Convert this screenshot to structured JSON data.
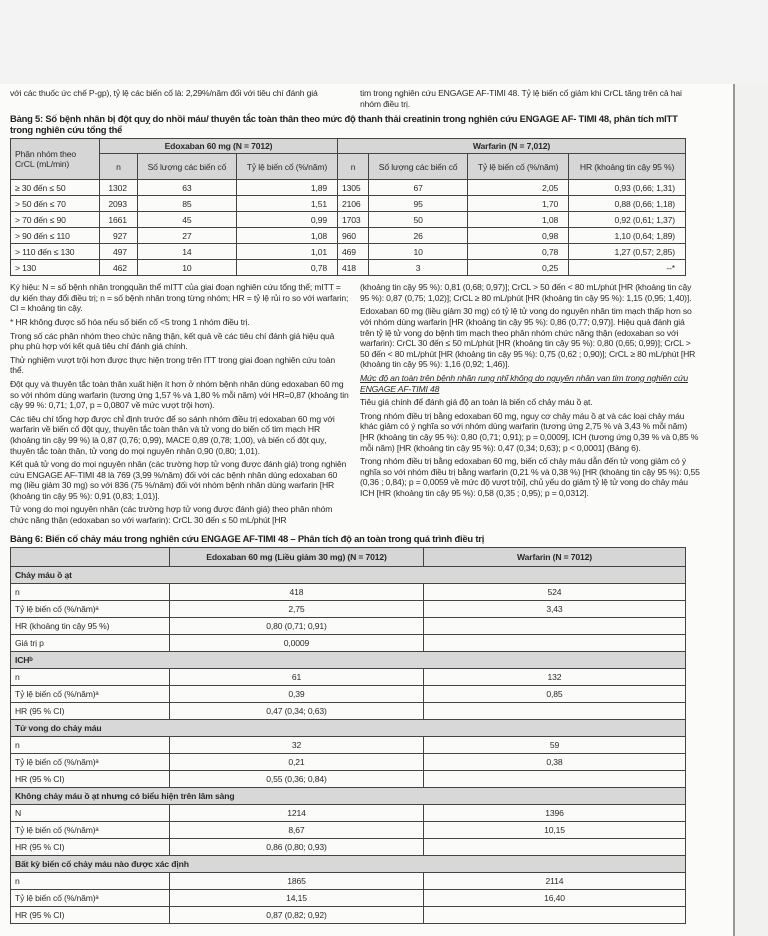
{
  "top_text": {
    "left": "với các thuốc ức chế P-gp), tỷ lệ các biến cố là: 2,29%/năm đối với tiêu chí đánh giá",
    "right": "tim trong nghiên cứu ENGAGE AF-TIMI 48. Tỷ lệ biến cố giảm khi CrCL tăng trên cả hai nhóm điều trị."
  },
  "table5": {
    "title": "Bảng 5: Số bệnh nhân bị đột quỵ do nhồi máu/ thuyên tắc toàn thân theo mức độ thanh thải creatinin trong nghiên cứu ENGAGE AF- TIMI 48, phân tích mITT trong nghiên cứu tổng thể",
    "group_header": "Phân nhóm theo CrCL (mL/min)",
    "edoxaban_header": "Edoxaban 60 mg (N = 7012)",
    "warfarin_header": "Warfarin (N = 7,012)",
    "sub_headers": [
      "n",
      "Số lượng các biến cố",
      "Tỷ lệ biến cố (%/năm)",
      "n",
      "Số lượng các biến cố",
      "Tỷ lệ biến cố (%/năm)",
      "HR (khoảng tin cậy 95 %)"
    ],
    "rows": [
      [
        "≥ 30 đến ≤ 50",
        "1302",
        "63",
        "1,89",
        "1305",
        "67",
        "2,05",
        "0,93 (0,66; 1,31)"
      ],
      [
        "> 50 đến ≤ 70",
        "2093",
        "85",
        "1,51",
        "2106",
        "95",
        "1,70",
        "0,88 (0,66; 1,18)"
      ],
      [
        "> 70 đến ≤ 90",
        "1661",
        "45",
        "0,99",
        "1703",
        "50",
        "1,08",
        "0,92 (0,61; 1,37)"
      ],
      [
        "> 90 đến ≤ 110",
        "927",
        "27",
        "1,08",
        "960",
        "26",
        "0,98",
        "1,10 (0,64; 1,89)"
      ],
      [
        "> 110 đến ≤ 130",
        "497",
        "14",
        "1,01",
        "469",
        "10",
        "0,78",
        "1,27 (0,57; 2,85)"
      ],
      [
        "> 130",
        "462",
        "10",
        "0,78",
        "418",
        "3",
        "0,25",
        "--*"
      ]
    ]
  },
  "left_paragraphs": [
    "Ký hiệu: N = số bệnh nhân trongquần thể mITT của giai đoạn nghiên cứu tổng thể; mITT = dự kiến thay đổi điều trị; n = số bệnh nhân trong từng nhóm; HR = tỷ lệ rủi ro so với warfarin; CI = khoảng tin cậy.",
    "* HR không được số hóa nếu số biến cố <5 trong 1 nhóm điều trị.",
    "Trong số các phân nhóm theo chức năng thận, kết quả về các tiêu chí đánh giá hiệu quả phụ phù hợp với kết quả tiêu chí đánh giá chính.",
    "Thử nghiệm vượt trội hơn được thực hiện trong trên ITT trong giai đoạn nghiên cứu toàn thể.",
    "Đột quỵ và thuyên tắc toàn thân xuất hiện ít hơn ở nhóm bệnh nhân dùng edoxaban 60 mg so với nhóm dùng warfarin (tương ứng 1,57 % và 1,80 % mỗi năm) với HR=0,87 (khoảng tin cậy 99 %: 0,71; 1,07, p = 0,0807 về mức vượt trội hơn).",
    "Các tiêu chí tổng hợp được chỉ định trước để so sánh nhóm điều trị edoxaban 60 mg với warfarin về biến cố đột quỵ, thuyên tắc toàn thân và tử vong do biến cố tim mạch HR (khoảng tin cậy 99 %) là 0,87 (0,76; 0,99), MACE 0,89 (0,78; 1,00), và biến cố đột quỵ, thuyên tắc toàn thân, tử vong do mọi nguyên nhân 0,90 (0,80; 1,01).",
    "Kết quả tử vong do mọi nguyên nhân (các trường hợp tử vong được đánh giá) trong nghiên cứu ENGAGE AF-TIMI 48 là 769 (3,99 %/năm) đối với các bệnh nhân dùng edoxaban 60 mg (liều giảm 30 mg) so với 836 (75 %/năm) đối với nhóm bệnh nhân dùng warfarin [HR (khoảng tin cậy 95 %): 0,91 (0,83; 1,01)].",
    "Tử vong do mọi nguyên nhân (các trường hợp tử vong được đánh giá) theo phân nhóm chức năng thận (edoxaban so với warfarin): CrCL 30 đến ≤ 50 mL/phút [HR"
  ],
  "right_paragraphs": [
    "(khoảng tin cậy 95 %): 0,81 (0,68; 0,97)]; CrCL > 50 đến < 80 mL/phút [HR (khoảng tin cậy 95 %): 0,87 (0,75; 1,02)]; CrCL ≥ 80 mL/phút [HR (khoảng tin cậy 95 %): 1,15 (0,95; 1,40)].",
    "Edoxaban 60 mg (liều giảm 30 mg) có tỷ lệ tử vong do nguyên nhân tim mạch thấp hơn so với nhóm dùng warfarin [HR (khoảng tin cậy 95 %): 0,86 (0,77; 0,97)]. Hiệu quả đánh giá trên tỷ lệ tử vong do bệnh tim mạch theo phân nhóm chức năng thận (edoxaban so với warfarin): CrCL 30 đến ≤ 50 mL/phút [HR (khoảng tin cậy 95 %): 0,80 (0,65; 0,99)]; CrCL > 50 đến < 80 mL/phút [HR (khoảng tin cậy 95 %): 0,75 (0,62 ; 0,90)]; CrCL ≥ 80 mL/phút [HR (khoảng tin cậy 95 %): 1,16 (0,92; 1,46)]."
  ],
  "right_heading": "Mức độ an toàn trên bệnh nhân rung nhĩ không do nguyên nhân van tim trong nghiên cứu ENGAGE AF-TIMI 48",
  "right_paragraphs_2": [
    "Tiêu giá chính để đánh giá độ an toàn là biến cố chảy máu ồ ạt.",
    "Trong nhóm điều trị bằng edoxaban 60 mg, nguy cơ chảy máu ồ ạt và các loại chảy máu khác giảm có ý nghĩa so với nhóm dùng warfarin (tương ứng 2,75 % và 3,43 % mỗi năm) [HR (khoảng tin cậy 95 %): 0,80 (0,71; 0,91); p = 0,0009], ICH (tương ứng 0,39 % và 0,85 % mỗi năm) [HR (khoảng tin cậy 95 %): 0,47 (0,34; 0,63); p < 0,0001] (Bảng 6).",
    "Trong nhóm điều trị bằng edoxaban 60 mg, biến cố chảy máu dẫn đến tử vong giảm có ý nghĩa so với nhóm điều trị bằng warfarin (0,21 % và 0,38 %) [HR (khoảng tin cậy 95 %): 0,55 (0,36 ; 0,84); p = 0,0059 về mức độ vượt trội], chủ yếu do giảm tỷ lệ tử vong do chảy máu ICH [HR (khoảng tin cậy 95 %): 0,58 (0,35 ; 0,95); p = 0,0312]."
  ],
  "table6": {
    "title": "Bảng 6: Biến cố chảy máu trong nghiên cứu ENGAGE AF-TIMI 48 – Phân tích độ an toàn trong quá trình điều trị",
    "edoxaban_header": "Edoxaban 60 mg (Liều giảm 30 mg) (N = 7012)",
    "warfarin_header": "Warfarin (N = 7012)",
    "sections": [
      {
        "title": "Chảy máu ồ ạt",
        "rows": [
          {
            "label": "n",
            "edoxaban": "418",
            "warfarin": "524"
          },
          {
            "label": "Tỷ lệ biến cố (%/năm)ᵃ",
            "edoxaban": "2,75",
            "warfarin": "3,43"
          },
          {
            "label": "HR (khoảng tin cậy 95 %)",
            "edoxaban": "0,80 (0,71; 0,91)",
            "warfarin": ""
          },
          {
            "label": "Giá trị p",
            "edoxaban": "0,0009",
            "warfarin": ""
          }
        ]
      },
      {
        "title": "ICHᵇ",
        "rows": [
          {
            "label": "n",
            "edoxaban": "61",
            "warfarin": "132"
          },
          {
            "label": "Tỷ lệ biến cố (%/năm)ᵃ",
            "edoxaban": "0,39",
            "warfarin": "0,85"
          },
          {
            "label": "HR (95 % CI)",
            "edoxaban": "0,47 (0,34; 0,63)",
            "warfarin": ""
          }
        ]
      },
      {
        "title": "Tử vong do chảy máu",
        "rows": [
          {
            "label": "n",
            "edoxaban": "32",
            "warfarin": "59"
          },
          {
            "label": "Tỷ lệ biến cố (%/năm)ᵃ",
            "edoxaban": "0,21",
            "warfarin": "0,38"
          },
          {
            "label": "HR (95 % CI)",
            "edoxaban": "0,55 (0,36; 0,84)",
            "warfarin": ""
          }
        ]
      },
      {
        "title": "Không chảy máu ồ ạt nhưng có biểu hiện trên lâm sàng",
        "rows": [
          {
            "label": "N",
            "edoxaban": "1214",
            "warfarin": "1396"
          },
          {
            "label": "Tỷ lệ biến cố (%/năm)ᵃ",
            "edoxaban": "8,67",
            "warfarin": "10,15"
          },
          {
            "label": "HR (95 % CI)",
            "edoxaban": "0,86 (0,80; 0,93)",
            "warfarin": ""
          }
        ]
      },
      {
        "title": "Bất kỳ biến cố chảy máu nào được xác định",
        "rows": [
          {
            "label": "n",
            "edoxaban": "1865",
            "warfarin": "2114"
          },
          {
            "label": "Tỷ lệ biến cố (%/năm)ᵃ",
            "edoxaban": "14,15",
            "warfarin": "16,40"
          },
          {
            "label": "HR (95 % CI)",
            "edoxaban": "0,87 (0,82; 0,92)",
            "warfarin": ""
          }
        ]
      }
    ]
  }
}
